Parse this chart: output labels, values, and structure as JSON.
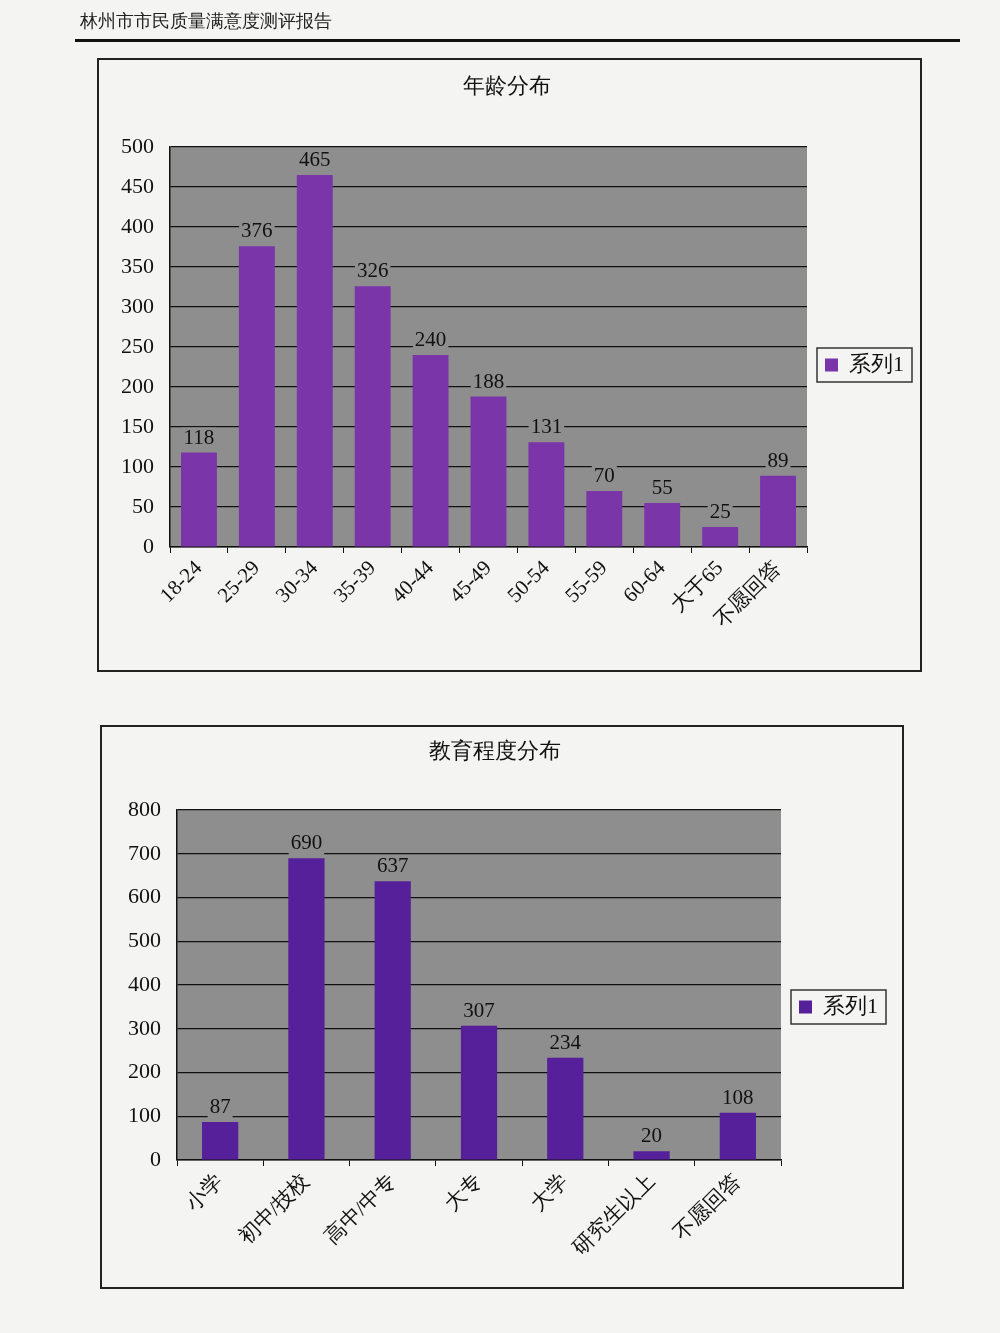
{
  "chart_data": [
    {
      "type": "bar",
      "title": "年龄分布",
      "categories": [
        "18-24",
        "25-29",
        "30-34",
        "35-39",
        "40-44",
        "45-49",
        "50-54",
        "55-59",
        "60-64",
        "大于65",
        "不愿回答"
      ],
      "series": [
        {
          "name": "系列1",
          "color": "#7a35a8",
          "values": [
            118,
            376,
            465,
            326,
            240,
            188,
            131,
            70,
            55,
            25,
            89
          ]
        }
      ],
      "ylim": [
        0,
        500
      ],
      "yticks": [
        0,
        50,
        100,
        150,
        200,
        250,
        300,
        350,
        400,
        450,
        500
      ],
      "grid": "y",
      "legend": "right",
      "data_labels": true,
      "annotations": [
        "林州市市民质量满意度测评报告"
      ]
    },
    {
      "type": "bar",
      "title": "教育程度分布",
      "categories": [
        "小学",
        "初中/技校",
        "高中/中专",
        "大专",
        "大学",
        "研究生以上",
        "不愿回答"
      ],
      "series": [
        {
          "name": "系列1",
          "color": "#55209a",
          "values": [
            87,
            690,
            637,
            307,
            234,
            20,
            108
          ]
        }
      ],
      "ylim": [
        0,
        800
      ],
      "yticks": [
        0,
        100,
        200,
        300,
        400,
        500,
        600,
        700,
        800
      ],
      "grid": "y",
      "legend": "right",
      "data_labels": true
    }
  ]
}
